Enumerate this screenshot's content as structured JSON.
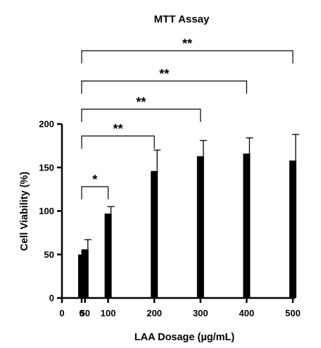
{
  "chart_data": {
    "type": "bar",
    "title": "MTT Assay",
    "xlabel": "LAA Dosage (µg/mL)",
    "ylabel": "Cell Viability (%)",
    "ylim": [
      0,
      200
    ],
    "yticks": [
      "0",
      "50",
      "100",
      "150",
      "200"
    ],
    "xlim": [
      0,
      500
    ],
    "x_axis_origin_label": "0",
    "categories": [
      "0",
      "50",
      "100",
      "200",
      "300",
      "400",
      "500"
    ],
    "x": [
      0,
      50,
      100,
      200,
      300,
      400,
      500
    ],
    "values": [
      50,
      56,
      97,
      146,
      163,
      166,
      158
    ],
    "error_upper": [
      53,
      67,
      105,
      170,
      181,
      184,
      188
    ],
    "significance": [
      {
        "from": "0",
        "to": "100",
        "label": "*"
      },
      {
        "from": "0",
        "to": "200",
        "label": "**"
      },
      {
        "from": "0",
        "to": "300",
        "label": "**"
      },
      {
        "from": "0",
        "to": "400",
        "label": "**"
      },
      {
        "from": "0",
        "to": "500",
        "label": "**"
      }
    ],
    "grid": false,
    "bar_color": "#000000"
  }
}
